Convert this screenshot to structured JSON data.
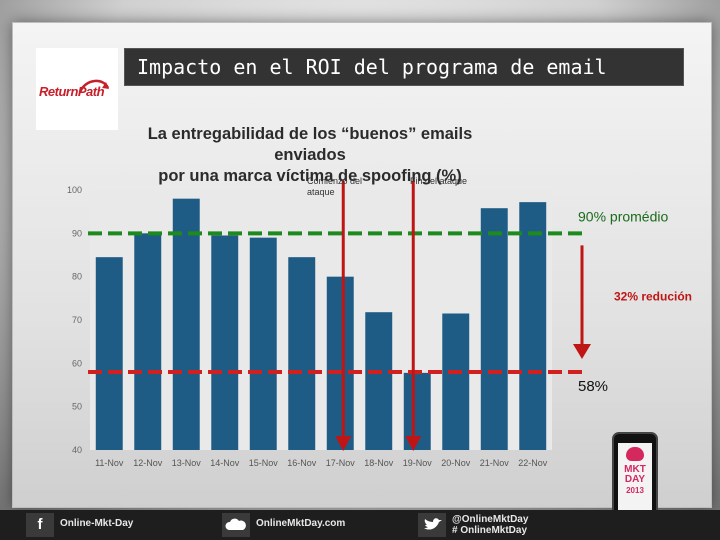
{
  "title": "Impacto en el ROI del programa de email",
  "logo": {
    "text": "ReturnPath"
  },
  "chart_data": {
    "type": "bar",
    "title": "La entregabilidad de los “buenos” emails enviados por una marca víctima de spoofing (%)",
    "title_lines": [
      "La entregabilidad de los “buenos” emails enviados",
      "por una marca víctima de spoofing (%)"
    ],
    "categories": [
      "11-Nov",
      "12-Nov",
      "13-Nov",
      "14-Nov",
      "15-Nov",
      "16-Nov",
      "17-Nov",
      "18-Nov",
      "19-Nov",
      "20-Nov",
      "21-Nov",
      "22-Nov"
    ],
    "values": [
      84.5,
      90,
      98,
      89.5,
      89,
      84.5,
      80,
      71.8,
      57.8,
      71.5,
      95.8,
      97.2
    ],
    "ylim": [
      40,
      100
    ],
    "yticks": [
      "40",
      "50",
      "60",
      "70",
      "80",
      "90",
      "100"
    ],
    "grid": false,
    "bar_color": "#1f5c85",
    "reference_lines": [
      {
        "value": 90,
        "label": "90% promédio",
        "color": "#1d8a1d",
        "label_color": "#1a6b1a"
      },
      {
        "value": 58,
        "label": "58%",
        "color": "#d12020",
        "label_color": "#111111"
      }
    ],
    "events": [
      {
        "category": "17-Nov",
        "label": "Comienzo del ataque"
      },
      {
        "category": "19-Nov",
        "label": "Fin del ataque"
      }
    ],
    "reduction_label": "32% redución"
  },
  "footer": {
    "facebook": {
      "icon": "f",
      "label": "Online-Mkt-Day"
    },
    "site": {
      "label": "OnlineMktDay.com"
    },
    "twitter": {
      "label_line1": "@OnlineMktDay",
      "label_line2": "# OnlineMktDay"
    }
  },
  "phone": {
    "line1": "MKT",
    "line2": "DAY",
    "line3": "2013"
  }
}
